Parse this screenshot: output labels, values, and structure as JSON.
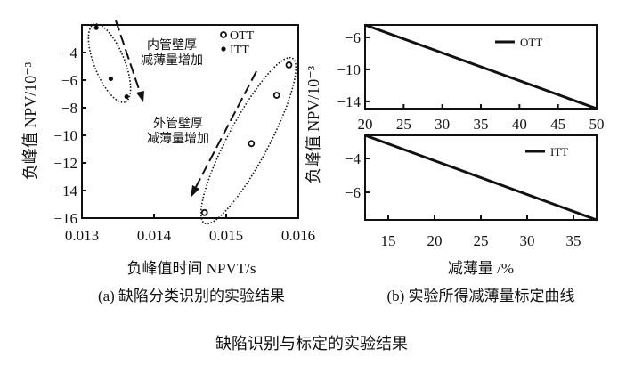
{
  "figure_title": "缺陷识别与标定的实验结果",
  "chart_data": [
    {
      "type": "scatter",
      "caption": "(a) 缺陷分类识别的实验结果",
      "xlabel": "负峰值时间 NPVT/s",
      "ylabel": "负峰值 NPV/10⁻³",
      "xlim": [
        0.013,
        0.016
      ],
      "ylim": [
        -16,
        -2
      ],
      "xticks": [
        "0.013",
        "0.014",
        "0.015",
        "0.016"
      ],
      "xtick_values": [
        0.013,
        0.014,
        0.015,
        0.016
      ],
      "yticks": [
        "-4",
        "-6",
        "-8",
        "-10",
        "-12",
        "-14",
        "-16"
      ],
      "ytick_values": [
        -4,
        -6,
        -8,
        -10,
        -12,
        -14,
        -16
      ],
      "legend": {
        "position": "top-right",
        "entries": [
          "OTT",
          "ITT"
        ]
      },
      "series": [
        {
          "name": "OTT",
          "marker": "open-circle",
          "x": [
            0.0147,
            0.01535,
            0.0157,
            0.01587
          ],
          "y": [
            -15.6,
            -10.6,
            -7.1,
            -4.9
          ]
        },
        {
          "name": "ITT",
          "marker": "filled-circle",
          "x": [
            0.0132,
            0.0134,
            0.01362
          ],
          "y": [
            -2.2,
            -5.9,
            -7.2
          ]
        }
      ],
      "annotations": [
        {
          "line1": "内管壁厚",
          "line2": "减薄量增加"
        },
        {
          "line1": "外管壁厚",
          "line2": "减薄量增加"
        }
      ],
      "grid": false
    },
    {
      "type": "line",
      "caption": "(b) 实验所得减薄量标定曲线",
      "xlabel": "减薄量 /%",
      "ylabel": "负峰值 NPV/10⁻³",
      "panels": [
        {
          "legend": {
            "position": "top-right",
            "entries": [
              "OTT"
            ]
          },
          "xlim": [
            20,
            50
          ],
          "ylim": [
            -14.9,
            -4.45
          ],
          "xticks": [
            "20",
            "25",
            "30",
            "35",
            "40",
            "45",
            "50"
          ],
          "xtick_values": [
            20,
            25,
            30,
            35,
            40,
            45,
            50
          ],
          "yticks": [
            "-6",
            "-10",
            "-14"
          ],
          "ytick_values": [
            -6,
            -10,
            -14
          ],
          "series": [
            {
              "name": "OTT",
              "x": [
                20,
                50
              ],
              "y": [
                -4.45,
                -14.9
              ]
            }
          ]
        },
        {
          "legend": {
            "position": "top-right",
            "entries": [
              "ITT"
            ]
          },
          "xlim": [
            12.5,
            37.5
          ],
          "ylim": [
            -7.63,
            -2.63
          ],
          "xticks": [
            "15",
            "20",
            "25",
            "30",
            "35"
          ],
          "xtick_values": [
            15,
            20,
            25,
            30,
            35
          ],
          "yticks": [
            "-4",
            "-6"
          ],
          "ytick_values": [
            -4,
            -6
          ],
          "series": [
            {
              "name": "ITT",
              "x": [
                12.5,
                37.5
              ],
              "y": [
                -2.63,
                -7.63
              ]
            }
          ]
        }
      ],
      "grid": false
    }
  ]
}
